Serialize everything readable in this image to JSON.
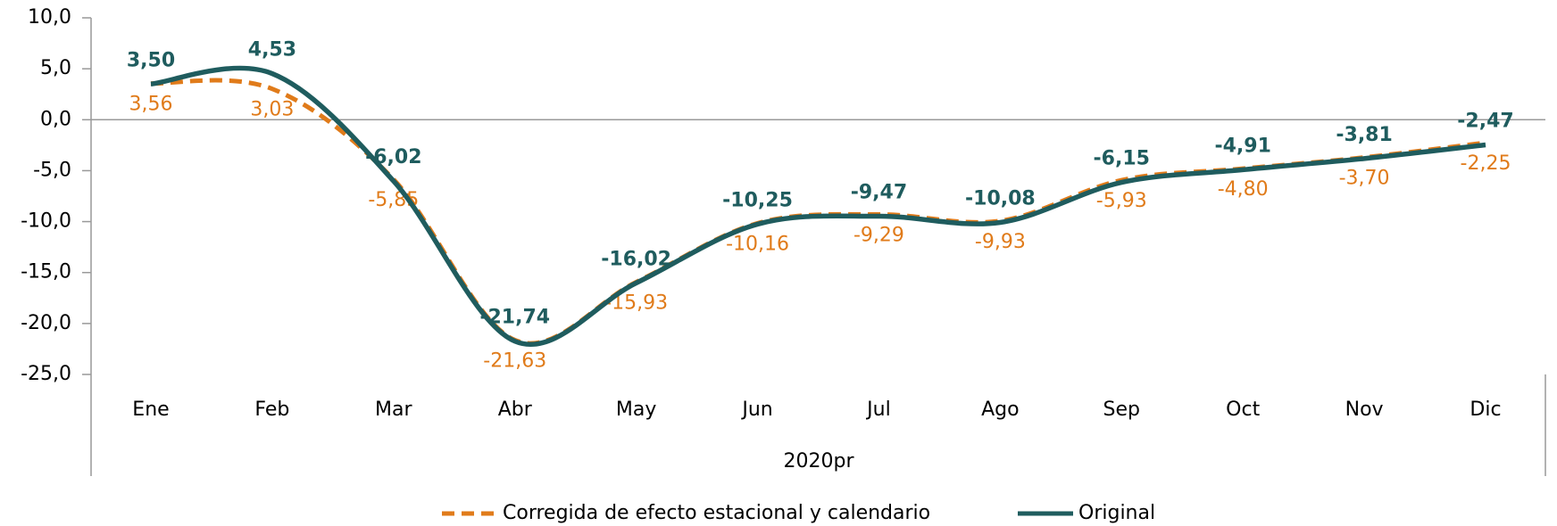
{
  "chart_data": {
    "type": "line",
    "xlabel": "2020pr",
    "categories": [
      "Ene",
      "Feb",
      "Mar",
      "Abr",
      "May",
      "Jun",
      "Jul",
      "Ago",
      "Sep",
      "Oct",
      "Nov",
      "Dic"
    ],
    "series": [
      {
        "name": "Corregida de efecto estacional y calendario",
        "color": "#e07b1a",
        "dashed": true,
        "values": [
          3.56,
          3.03,
          -5.85,
          -21.63,
          -15.93,
          -10.16,
          -9.29,
          -9.93,
          -5.93,
          -4.8,
          -3.7,
          -2.25
        ],
        "value_labels": [
          "3,56",
          "3,03",
          "-5,85",
          "-21,63",
          "-15,93",
          "-10,16",
          "-9,29",
          "-9,93",
          "-5,93",
          "-4,80",
          "-3,70",
          "-2,25"
        ]
      },
      {
        "name": "Original",
        "color": "#1f5c5e",
        "dashed": false,
        "values": [
          3.5,
          4.53,
          -6.02,
          -21.74,
          -16.02,
          -10.25,
          -9.47,
          -10.08,
          -6.15,
          -4.91,
          -3.81,
          -2.47
        ],
        "value_labels": [
          "3,50",
          "4,53",
          "-6,02",
          "-21,74",
          "-16,02",
          "-10,25",
          "-9,47",
          "-10,08",
          "-6,15",
          "-4,91",
          "-3,81",
          "-2,47"
        ]
      }
    ],
    "ylim": [
      -25,
      10
    ],
    "yticks": [
      {
        "value": 10,
        "label": "10,0"
      },
      {
        "value": 5,
        "label": "5,0"
      },
      {
        "value": 0,
        "label": "0,0"
      },
      {
        "value": -5,
        "label": "-5,0"
      },
      {
        "value": -10,
        "label": "-10,0"
      },
      {
        "value": -15,
        "label": "-15,0"
      },
      {
        "value": -20,
        "label": "-20,0"
      },
      {
        "value": -25,
        "label": "-25,0"
      }
    ],
    "legend": "bottom"
  }
}
